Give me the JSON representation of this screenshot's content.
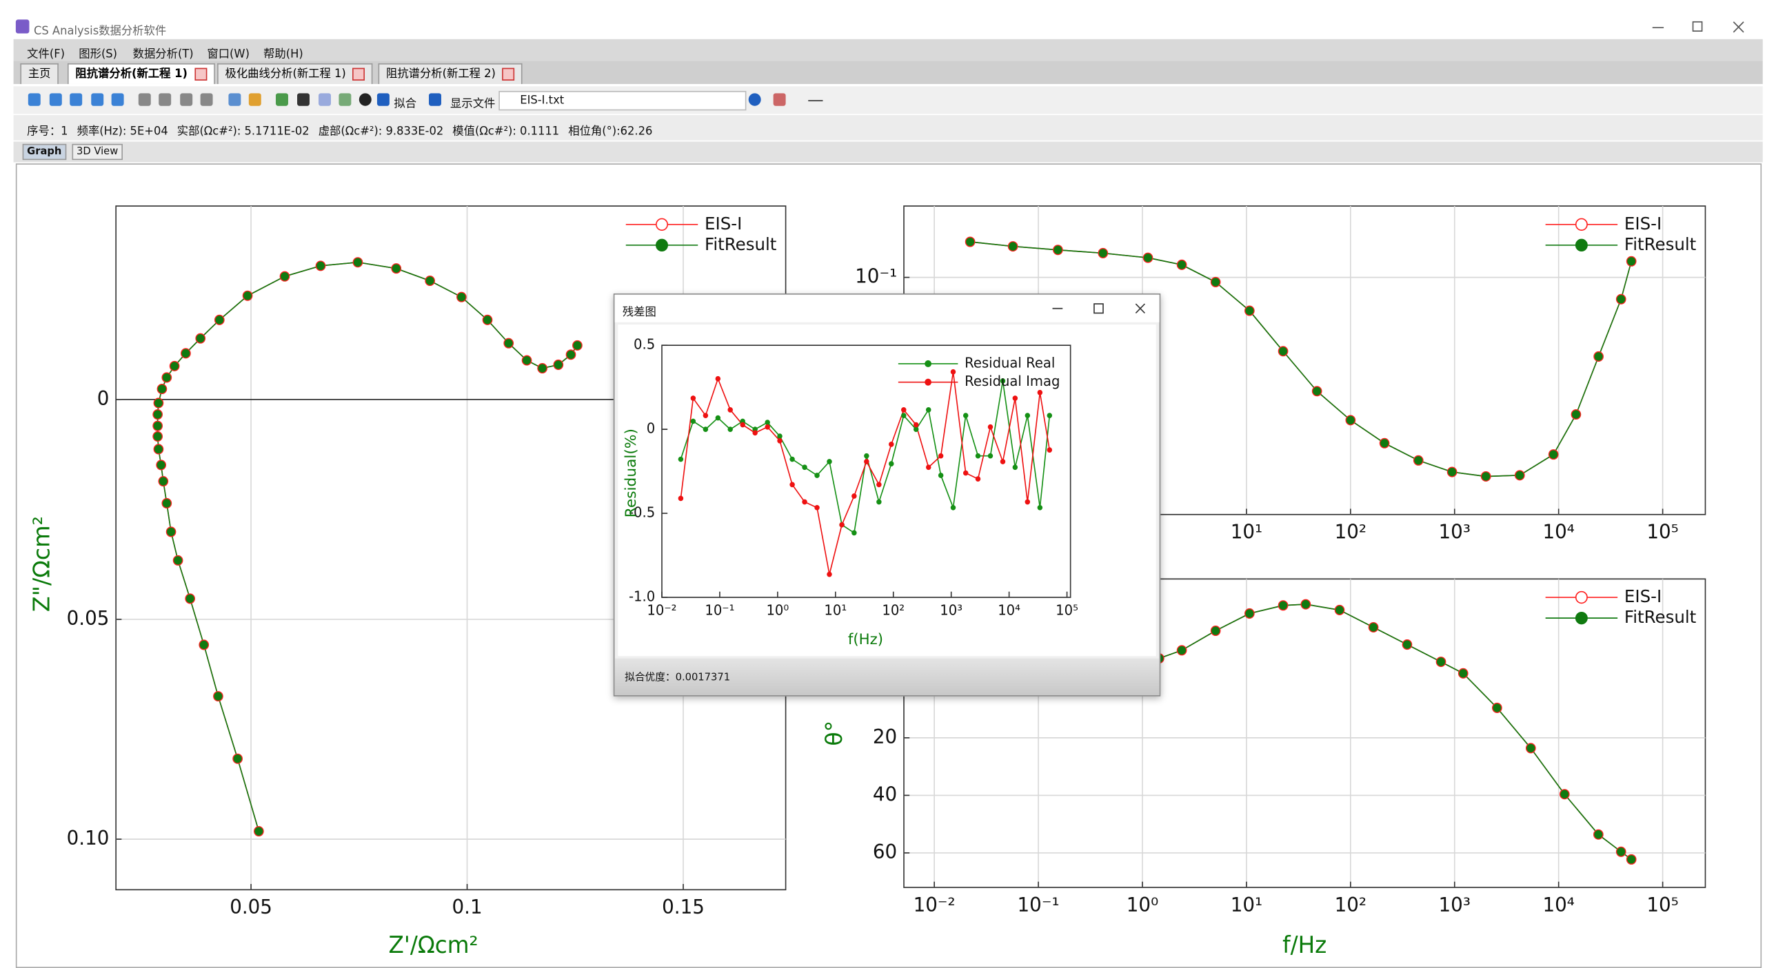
{
  "window": {
    "title": "CS Analysis数据分析软件",
    "menu": [
      "文件(F)",
      "图形(S)",
      "数据分析(T)",
      "窗口(W)",
      "帮助(H)"
    ],
    "tabs": [
      "主页",
      "阻抗谱分析(新工程 1)",
      "极化曲线分析(新工程 1)",
      "阻抗谱分析(新工程 2)"
    ],
    "toolbar": {
      "fit": "拟合",
      "show_file": "显示文件",
      "file": "EIS-I.txt"
    },
    "status": [
      "序号：1",
      "频率(Hz): 5E+04",
      "实部(Ωc#²): 5.1711E-02",
      "虚部(Ωc#²): 9.833E-02",
      "模值(Ωc#²): 0.1111",
      "相位角(°):62.26"
    ],
    "view_tabs": [
      "Graph",
      "3D View"
    ],
    "dialog": {
      "title": "残差图",
      "footer": "拟合优度：0.0017371"
    }
  },
  "chart_data": [
    {
      "type": "line",
      "xlabel": "Z'/Ωcm²",
      "ylabel": "Z\"/Ωcm²",
      "xscale": "linear",
      "yscale": "linear",
      "y_inverted": true,
      "grid": true,
      "legend": "upper right",
      "xlim": [
        0.01875,
        0.1737
      ],
      "ylim": [
        -0.044,
        0.1115
      ],
      "xticks": [
        0.05,
        0.1,
        0.15
      ],
      "yticks": [
        0,
        0.05,
        {
          "value": 0.1,
          "label": "0.10"
        }
      ],
      "series": [
        {
          "name": "EIS-I",
          "color": "#ff2020",
          "marker": "open-circle",
          "x": [
            0.0518,
            0.0469,
            0.0424,
            0.0391,
            0.0359,
            0.0331,
            0.0315,
            0.0305,
            0.0297,
            0.0292,
            0.0286,
            0.0284,
            0.0284,
            0.0284,
            0.0286,
            0.0294,
            0.0305,
            0.0323,
            0.0349,
            0.0383,
            0.0427,
            0.0492,
            0.0578,
            0.0661,
            0.0747,
            0.0836,
            0.0914,
            0.0987,
            0.1047,
            0.1096,
            0.1138,
            0.1174,
            0.1211,
            0.124,
            0.1255
          ],
          "values": [
            0.0982,
            0.0817,
            0.0675,
            0.0558,
            0.0453,
            0.0366,
            0.0301,
            0.0236,
            0.0186,
            0.0149,
            0.0113,
            0.0084,
            0.006,
            0.0034,
            0.0008,
            -0.0024,
            -0.005,
            -0.0076,
            -0.0105,
            -0.0139,
            -0.0181,
            -0.0236,
            -0.028,
            -0.0304,
            -0.0312,
            -0.0298,
            -0.027,
            -0.0233,
            -0.0181,
            -0.0128,
            -0.0089,
            -0.0071,
            -0.0079,
            -0.0102,
            -0.0123
          ]
        },
        {
          "name": "FitResult",
          "color": "#107a10",
          "marker": "dot",
          "x": [
            0.0518,
            0.0469,
            0.0424,
            0.0391,
            0.0359,
            0.0331,
            0.0315,
            0.0305,
            0.0297,
            0.0292,
            0.0286,
            0.0284,
            0.0284,
            0.0284,
            0.0286,
            0.0294,
            0.0305,
            0.0323,
            0.0349,
            0.0383,
            0.0427,
            0.0492,
            0.0578,
            0.0661,
            0.0747,
            0.0836,
            0.0914,
            0.0987,
            0.1047,
            0.1096,
            0.1138,
            0.1174,
            0.1211,
            0.124,
            0.1255
          ],
          "values": [
            0.0982,
            0.0817,
            0.0675,
            0.0558,
            0.0453,
            0.0366,
            0.0301,
            0.0236,
            0.0186,
            0.0149,
            0.0113,
            0.0084,
            0.006,
            0.0034,
            0.0008,
            -0.0024,
            -0.005,
            -0.0076,
            -0.0105,
            -0.0139,
            -0.0181,
            -0.0236,
            -0.028,
            -0.0304,
            -0.0312,
            -0.0298,
            -0.027,
            -0.0233,
            -0.0181,
            -0.0128,
            -0.0089,
            -0.0071,
            -0.0079,
            -0.0102,
            -0.0123
          ]
        }
      ]
    },
    {
      "type": "line",
      "xscale": "log",
      "yscale": "log",
      "grid": true,
      "legend": "upper right",
      "xlim": [
        0.0051,
        257000
      ],
      "ylim": [
        0.0212,
        0.1595
      ],
      "xticks": [
        {
          "value": 0.01,
          "label": "10⁻²"
        },
        {
          "value": 0.1,
          "label": "10⁻¹"
        },
        {
          "value": 1,
          "label": "10⁰"
        },
        {
          "value": 10,
          "label": "10¹"
        },
        {
          "value": 100,
          "label": "10²"
        },
        {
          "value": 1000,
          "label": "10³"
        },
        {
          "value": 10000,
          "label": "10⁴"
        },
        {
          "value": 100000,
          "label": "10⁵"
        }
      ],
      "yticks": [
        {
          "value": 0.1,
          "label": "10⁻¹"
        }
      ],
      "x": [
        0.0221,
        0.0569,
        0.154,
        0.418,
        1.13,
        2.39,
        5.05,
        10.7,
        22.5,
        47.6,
        100,
        212,
        449,
        946,
        2000,
        4230,
        8920,
        14700,
        24200,
        39800,
        50000
      ],
      "series": [
        {
          "name": "EIS-I",
          "color": "#ff2020",
          "marker": "open-circle",
          "values": [
            0.1262,
            0.1225,
            0.1197,
            0.1172,
            0.1137,
            0.1086,
            0.097,
            0.0804,
            0.0617,
            0.0475,
            0.0393,
            0.0338,
            0.0302,
            0.028,
            0.0272,
            0.0274,
            0.0314,
            0.0408,
            0.0596,
            0.0867,
            0.1111
          ]
        },
        {
          "name": "FitResult",
          "color": "#107a10",
          "marker": "dot",
          "values": [
            0.1262,
            0.1225,
            0.1197,
            0.1172,
            0.1137,
            0.1086,
            0.097,
            0.0804,
            0.0617,
            0.0475,
            0.0393,
            0.0338,
            0.0302,
            0.028,
            0.0272,
            0.0274,
            0.0314,
            0.0408,
            0.0596,
            0.0867,
            0.1111
          ]
        }
      ]
    },
    {
      "type": "line",
      "xlabel": "f/Hz",
      "ylabel": "θ°",
      "xscale": "log",
      "yscale": "linear",
      "y_inverted": true,
      "grid": true,
      "legend": "upper right",
      "xlim": [
        0.0051,
        257000
      ],
      "ylim": [
        -35.2,
        72
      ],
      "xticks": [
        {
          "value": 0.01,
          "label": "10⁻²"
        },
        {
          "value": 0.1,
          "label": "10⁻¹"
        },
        {
          "value": 1,
          "label": "10⁰"
        },
        {
          "value": 10,
          "label": "10¹"
        },
        {
          "value": 100,
          "label": "10²"
        },
        {
          "value": 1000,
          "label": "10³"
        },
        {
          "value": 10000,
          "label": "10⁴"
        },
        {
          "value": 100000,
          "label": "10⁵"
        }
      ],
      "yticks": [
        20,
        40,
        60
      ],
      "x": [
        1.45,
        2.39,
        5.05,
        10.7,
        22.5,
        37.1,
        78.5,
        166,
        350,
        740,
        1210,
        2560,
        5400,
        11400,
        24100,
        39800,
        50000
      ],
      "series": [
        {
          "name": "EIS-I",
          "color": "#ff2020",
          "marker": "open-circle",
          "values": [
            -7.6,
            -10.4,
            -17.2,
            -23.2,
            -26.0,
            -26.4,
            -24.4,
            -18.4,
            -12.4,
            -6.4,
            -2.4,
            9.6,
            23.6,
            39.6,
            53.6,
            59.6,
            62.26
          ]
        },
        {
          "name": "FitResult",
          "color": "#107a10",
          "marker": "dot",
          "values": [
            -7.6,
            -10.4,
            -17.2,
            -23.2,
            -26.0,
            -26.4,
            -24.4,
            -18.4,
            -12.4,
            -6.4,
            -2.4,
            9.6,
            23.6,
            39.6,
            53.6,
            59.6,
            62.26
          ]
        }
      ]
    },
    {
      "type": "line",
      "xlabel": "f(Hz)",
      "ylabel": "Residual(%)",
      "xscale": "log",
      "yscale": "linear",
      "grid": false,
      "legend": "upper right",
      "xlim": [
        0.01,
        115000
      ],
      "ylim": [
        -1.0,
        0.5
      ],
      "xticks": [
        {
          "value": 0.01,
          "label": "10⁻²"
        },
        {
          "value": 0.1,
          "label": "10⁻¹"
        },
        {
          "value": 1,
          "label": "10⁰"
        },
        {
          "value": 10,
          "label": "10¹"
        },
        {
          "value": 100,
          "label": "10²"
        },
        {
          "value": 1000,
          "label": "10³"
        },
        {
          "value": 10000,
          "label": "10⁴"
        },
        {
          "value": 100000,
          "label": "10⁵"
        }
      ],
      "yticks": [
        0.5,
        0,
        -0.5,
        {
          "value": -1.0,
          "label": "-1.0"
        }
      ],
      "x": [
        0.0212,
        0.0347,
        0.0569,
        0.0931,
        0.152,
        0.249,
        0.408,
        0.668,
        1.09,
        1.79,
        2.93,
        4.8,
        7.85,
        12.9,
        21,
        34.4,
        56.4,
        92.2,
        151,
        247,
        405,
        662,
        1080,
        1780,
        2900,
        4750,
        7780,
        12700,
        20800,
        34100,
        50000
      ],
      "series": [
        {
          "name": "Residual Real",
          "color": "#159015",
          "marker": "small-dot",
          "values": [
            -0.178,
            0.048,
            0,
            0.068,
            0,
            0.048,
            0,
            0.041,
            -0.041,
            -0.178,
            -0.226,
            -0.274,
            -0.192,
            -0.568,
            -0.616,
            -0.158,
            -0.432,
            -0.205,
            0.082,
            0,
            0.116,
            -0.274,
            -0.466,
            0.082,
            -0.158,
            -0.158,
            0.288,
            -0.226,
            0.082,
            -0.466,
            0.082
          ]
        },
        {
          "name": "Residual Imag",
          "color": "#ee1111",
          "marker": "small-dot",
          "values": [
            -0.411,
            0.185,
            0.082,
            0.301,
            0.116,
            0.027,
            -0.021,
            0.014,
            -0.068,
            -0.329,
            -0.432,
            -0.466,
            -0.863,
            -0.568,
            -0.397,
            -0.192,
            -0.329,
            -0.089,
            0.116,
            0.027,
            -0.226,
            -0.158,
            0.342,
            -0.26,
            -0.295,
            0.014,
            -0.192,
            0.185,
            -0.432,
            0.219,
            -0.123
          ]
        }
      ]
    }
  ]
}
